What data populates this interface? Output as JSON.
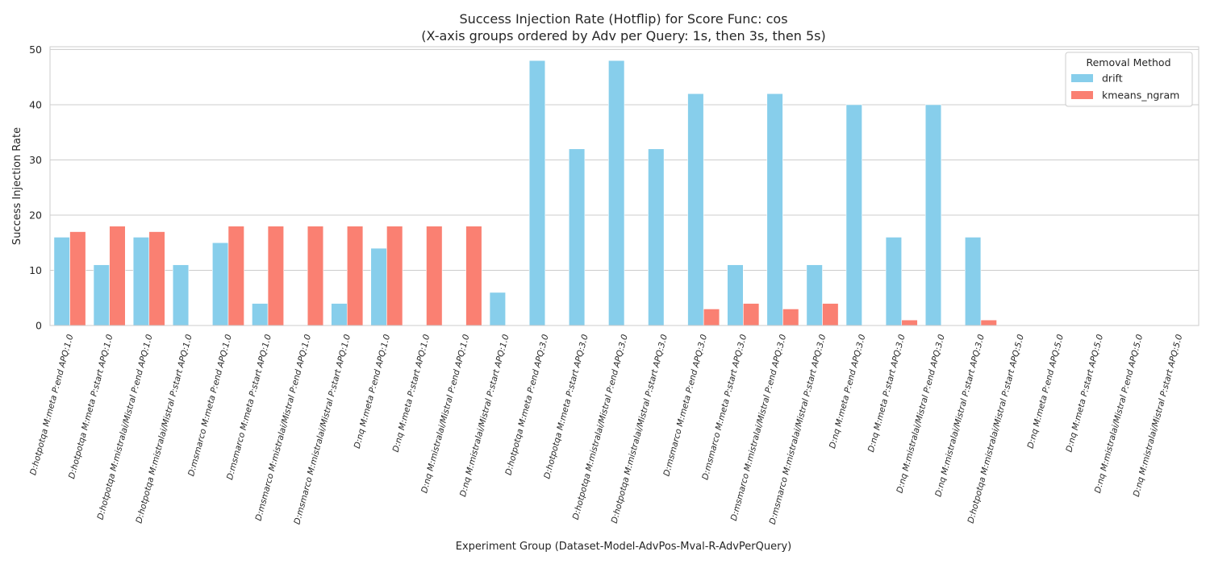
{
  "chart_data": {
    "type": "bar",
    "title": "Success Injection Rate (Hotflip) for Score Func: cos",
    "subtitle": "(X-axis groups ordered by Adv per Query: 1s, then 3s, then 5s)",
    "xlabel": "Experiment Group (Dataset-Model-AdvPos-Mval-R-AdvPerQuery)",
    "ylabel": "Success Injection Rate",
    "ylim": [
      0,
      50.5
    ],
    "yticks": [
      0,
      10,
      20,
      30,
      40,
      50
    ],
    "grid": true,
    "legend": {
      "title": "Removal Method",
      "placement": "top-right"
    },
    "categories": [
      "D:hotpotqa M:meta P:end APQ:1.0",
      "D:hotpotqa M:meta P:start APQ:1.0",
      "D:hotpotqa M:mistralai/Mistral P:end APQ:1.0",
      "D:hotpotqa M:mistralai/Mistral P:start APQ:1.0",
      "D:msmarco M:meta P:end APQ:1.0",
      "D:msmarco M:meta P:start APQ:1.0",
      "D:msmarco M:mistralai/Mistral P:end APQ:1.0",
      "D:msmarco M:mistralai/Mistral P:start APQ:1.0",
      "D:nq M:meta P:end APQ:1.0",
      "D:nq M:meta P:start APQ:1.0",
      "D:nq M:mistralai/Mistral P:end APQ:1.0",
      "D:nq M:mistralai/Mistral P:start APQ:1.0",
      "D:hotpotqa M:meta P:end APQ:3.0",
      "D:hotpotqa M:meta P:start APQ:3.0",
      "D:hotpotqa M:mistralai/Mistral P:end APQ:3.0",
      "D:hotpotqa M:mistralai/Mistral P:start APQ:3.0",
      "D:msmarco M:meta P:end APQ:3.0",
      "D:msmarco M:meta P:start APQ:3.0",
      "D:msmarco M:mistralai/Mistral P:end APQ:3.0",
      "D:msmarco M:mistralai/Mistral P:start APQ:3.0",
      "D:nq M:meta P:end APQ:3.0",
      "D:nq M:meta P:start APQ:3.0",
      "D:nq M:mistralai/Mistral P:end APQ:3.0",
      "D:nq M:mistralai/Mistral P:start APQ:3.0",
      "D:hotpotqa M:mistralai/Mistral P:start APQ:5.0",
      "D:nq M:meta P:end APQ:5.0",
      "D:nq M:meta P:start APQ:5.0",
      "D:nq M:mistralai/Mistral P:end APQ:5.0",
      "D:nq M:mistralai/Mistral P:start APQ:5.0"
    ],
    "series": [
      {
        "name": "drift",
        "color": "#87ceeb",
        "values": [
          16,
          11,
          16,
          11,
          15,
          4,
          0,
          4,
          14,
          0,
          0,
          6,
          48,
          32,
          48,
          32,
          42,
          11,
          42,
          11,
          40,
          16,
          40,
          16,
          0,
          0,
          0,
          0,
          0
        ]
      },
      {
        "name": "kmeans_ngram",
        "color": "#fa8072",
        "values": [
          17,
          18,
          17,
          0,
          18,
          18,
          18,
          18,
          18,
          18,
          18,
          0,
          0,
          0,
          0,
          0,
          3,
          4,
          3,
          4,
          0,
          1,
          0,
          1,
          0,
          0,
          0,
          0,
          0
        ]
      }
    ]
  }
}
